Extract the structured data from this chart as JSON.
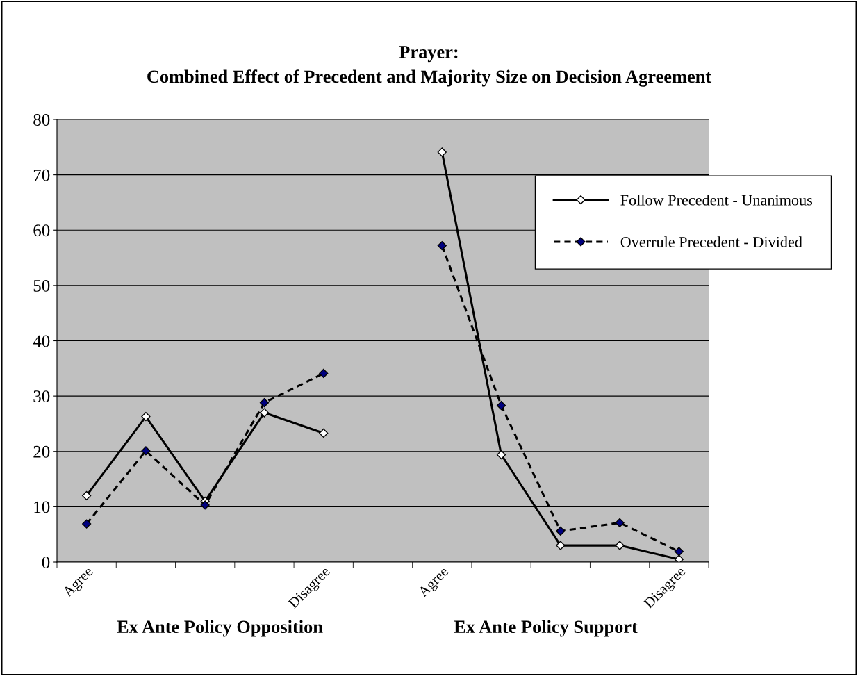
{
  "chart_data": {
    "type": "line",
    "title": "Prayer:\nCombined Effect of Precedent and Majority Size on Decision Agreement",
    "categories": [
      "Agree",
      null,
      null,
      null,
      "Disagree",
      null,
      "Agree",
      null,
      null,
      null,
      "Disagree"
    ],
    "series": [
      {
        "name": "Follow Precedent - Unanimous",
        "color": "#000000",
        "line_style": "solid",
        "values": [
          12,
          26.3,
          11,
          27,
          23.3,
          null,
          74.1,
          19.4,
          3,
          3,
          0.5
        ]
      },
      {
        "name": "Overrule Precedent - Divided",
        "color": "#000080",
        "line_style": "dashed",
        "values": [
          6.9,
          20.1,
          10.3,
          28.8,
          34.1,
          null,
          57.2,
          28.3,
          5.6,
          7.1,
          1.9
        ]
      }
    ],
    "ylim": [
      0,
      80
    ],
    "yticks": [
      0,
      10,
      20,
      30,
      40,
      50,
      60,
      70,
      80
    ],
    "grid": "y",
    "legend": "top right",
    "marker": "diamond",
    "annotations": [
      "Ex Ante Policy Opposition",
      "Ex Ante Policy Support"
    ]
  }
}
